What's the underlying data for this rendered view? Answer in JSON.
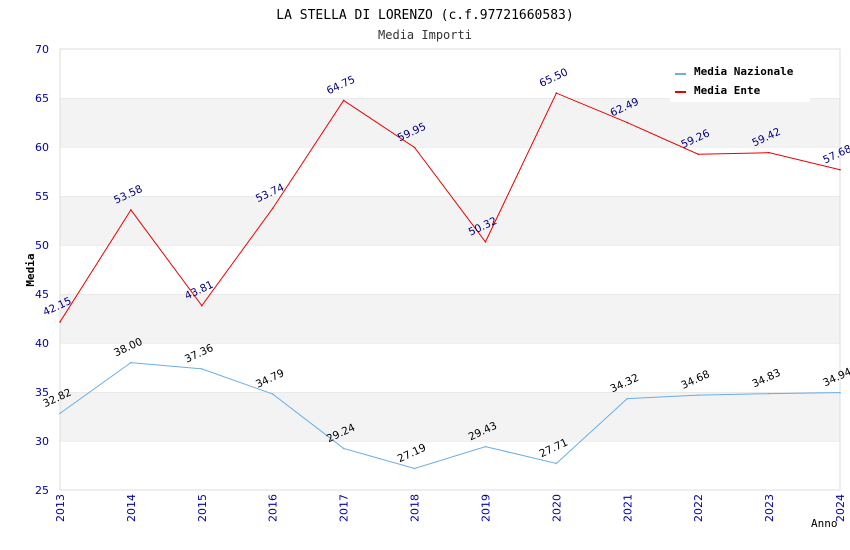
{
  "chart_data": {
    "type": "line",
    "title": "LA STELLA DI LORENZO (c.f.97721660583)",
    "subtitle": "Media Importi",
    "xlabel": "Anno",
    "ylabel": "Media",
    "x": [
      "2013",
      "2014",
      "2015",
      "2016",
      "2017",
      "2018",
      "2019",
      "2020",
      "2021",
      "2022",
      "2023",
      "2024"
    ],
    "ylim": [
      25,
      70
    ],
    "yticks": [
      "25",
      "30",
      "35",
      "40",
      "45",
      "50",
      "55",
      "60",
      "65",
      "70"
    ],
    "grid": "alternating horizontal bands",
    "legend_position": "top-right",
    "series": [
      {
        "name": "Media Nazionale",
        "color": "#6aaee6",
        "label_color": "#000000",
        "values": [
          32.82,
          38.0,
          37.36,
          34.79,
          29.24,
          27.19,
          29.43,
          27.71,
          34.32,
          34.68,
          34.83,
          34.94
        ],
        "labels": [
          "32.82",
          "38.00",
          "37.36",
          "34.79",
          "29.24",
          "27.19",
          "29.43",
          "27.71",
          "34.32",
          "34.68",
          "34.83",
          "34.94"
        ]
      },
      {
        "name": "Media Ente",
        "color": "#ee0000",
        "label_color": "#000080",
        "values": [
          42.15,
          53.58,
          43.81,
          53.74,
          64.75,
          59.95,
          50.32,
          65.5,
          62.49,
          59.26,
          59.42,
          57.68
        ],
        "labels": [
          "42.15",
          "53.58",
          "43.81",
          "53.74",
          "64.75",
          "59.95",
          "50.32",
          "65.50",
          "62.49",
          "59.26",
          "59.42",
          "57.68"
        ]
      }
    ]
  }
}
